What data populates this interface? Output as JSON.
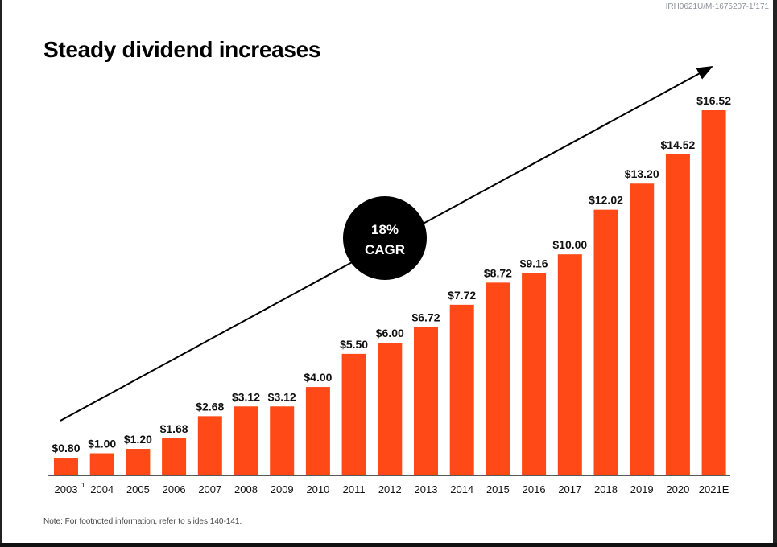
{
  "doc_id": "IRH0621U/M-1675207-1/171",
  "note": "Note: For footnoted information, refer to slides 140-141.",
  "colors": {
    "bar": "#FF4A17",
    "text": "#111111",
    "circle": "#000000"
  },
  "chart_data": {
    "type": "bar",
    "title": "Steady dividend increases",
    "categories": [
      "2003",
      "2004",
      "2005",
      "2006",
      "2007",
      "2008",
      "2009",
      "2010",
      "2011",
      "2012",
      "2013",
      "2014",
      "2015",
      "2016",
      "2017",
      "2018",
      "2019",
      "2020",
      "2021E"
    ],
    "category_footnotes": {
      "2003": "1"
    },
    "values": [
      0.8,
      1.0,
      1.2,
      1.68,
      2.68,
      3.12,
      3.12,
      4.0,
      5.5,
      6.0,
      6.72,
      7.72,
      8.72,
      9.16,
      10.0,
      12.02,
      13.2,
      14.52,
      16.52
    ],
    "data_labels": [
      "$0.80",
      "$1.00",
      "$1.20",
      "$1.68",
      "$2.68",
      "$3.12",
      "$3.12",
      "$4.00",
      "$5.50",
      "$6.00",
      "$6.72",
      "$7.72",
      "$8.72",
      "$9.16",
      "$10.00",
      "$12.02",
      "$13.20",
      "$14.52",
      "$16.52"
    ],
    "xlabel": "",
    "ylabel": "",
    "ylim": [
      0,
      16.52
    ],
    "grid": false,
    "annotation": {
      "line1": "18%",
      "line2": "CAGR"
    }
  }
}
